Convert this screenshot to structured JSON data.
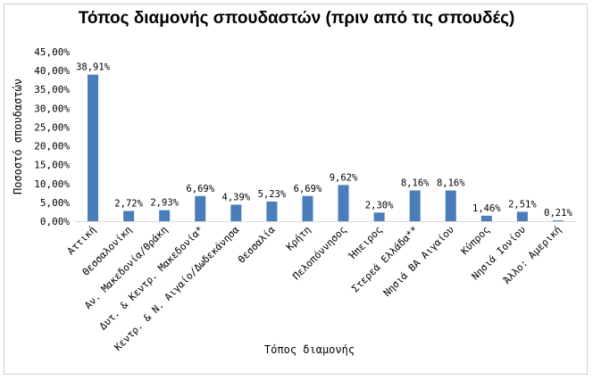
{
  "chart_data": {
    "type": "bar",
    "title": "Τόπος διαμονής σπουδαστών (πριν από τις σπουδές)",
    "xlabel": "Τόπος διαμονής",
    "ylabel": "Ποσοστό σπουδαστών",
    "ylim": [
      0,
      45
    ],
    "yticks": [
      "0,00%",
      "5,00%",
      "10,00%",
      "15,00%",
      "20,00%",
      "25,00%",
      "30,00%",
      "35,00%",
      "40,00%",
      "45,00%"
    ],
    "grid": false,
    "bar_color": "#4a7ebb",
    "categories": [
      "Αττική",
      "Θεσσαλονίκη",
      "Αν. Μακεδονία/Θράκη",
      "Δυτ. & Κεντρ. Μακεδονία*",
      "Κεντρ. & Ν. Αιγαίο/Δωδεκάνησα",
      "Θεσσαλία",
      "Κρήτη",
      "Πελοπόννησος",
      "Ήπειρος",
      "Στερεά Ελλάδα**",
      "Νησιά ΒΑ Αιγαίου",
      "Κύπρος",
      "Νησιά Ιονίου",
      "Άλλο: Αμερική"
    ],
    "values": [
      38.91,
      2.72,
      2.93,
      6.69,
      4.39,
      5.23,
      6.69,
      9.62,
      2.3,
      8.16,
      8.16,
      1.46,
      2.51,
      0.21
    ],
    "value_labels": [
      "38,91%",
      "2,72%",
      "2,93%",
      "6,69%",
      "4,39%",
      "5,23%",
      "6,69%",
      "9,62%",
      "2,30%",
      "8,16%",
      "8,16%",
      "1,46%",
      "2,51%",
      "0,21%"
    ]
  }
}
